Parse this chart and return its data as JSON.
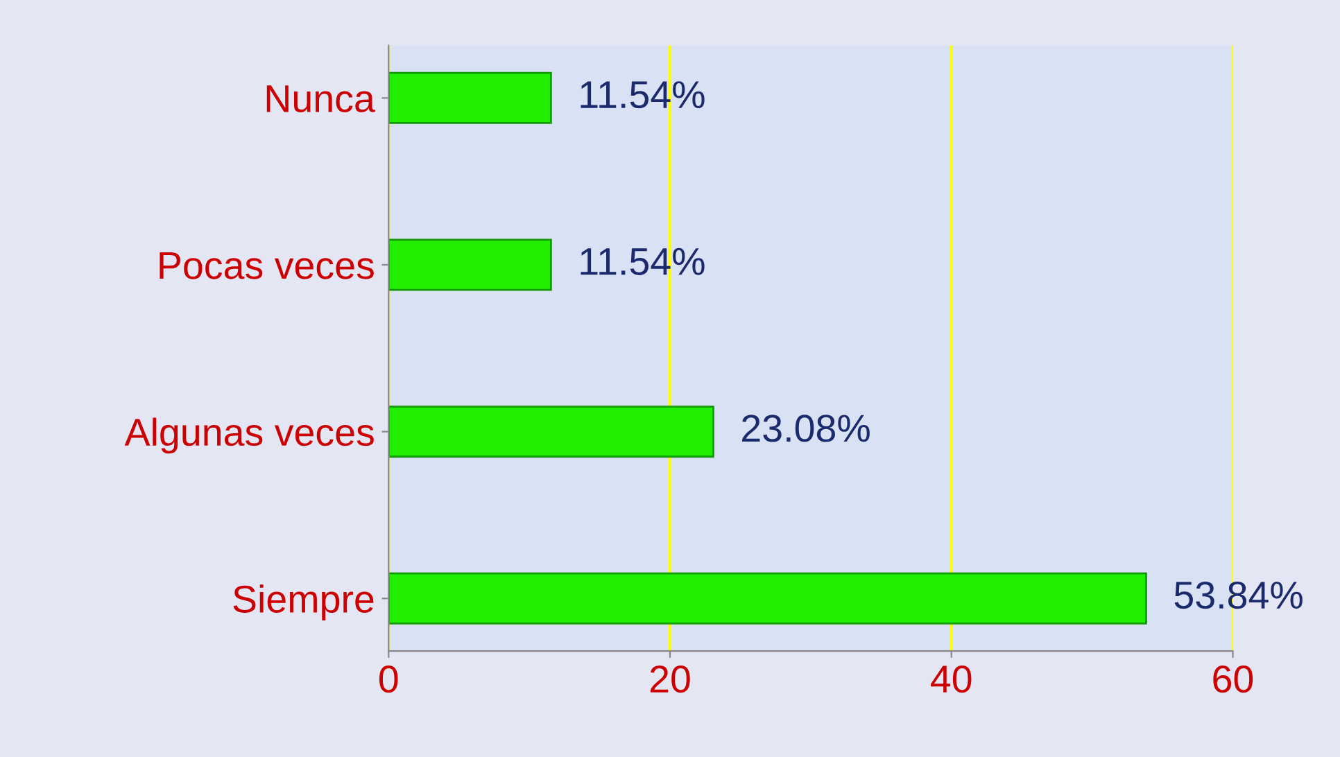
{
  "chart_data": {
    "type": "bar",
    "orientation": "horizontal",
    "categories": [
      "Nunca",
      "Pocas veces",
      "Algunas veces",
      "Siempre"
    ],
    "values": [
      11.54,
      11.54,
      23.08,
      53.84
    ],
    "value_labels": [
      "11.54%",
      "11.54%",
      "23.08%",
      "53.84%"
    ],
    "color": "#22ee00",
    "xlim": [
      0,
      60
    ],
    "xticks": [
      0,
      20,
      40,
      60
    ],
    "grid": "x"
  }
}
